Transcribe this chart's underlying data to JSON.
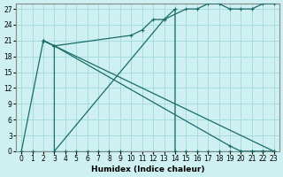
{
  "xlabel": "Humidex (Indice chaleur)",
  "bg_color": "#cef0f0",
  "grid_color": "#a8dcdc",
  "line_color": "#1a6b6b",
  "xlim": [
    -0.5,
    23.5
  ],
  "ylim": [
    0,
    28
  ],
  "xticks": [
    0,
    1,
    2,
    3,
    4,
    5,
    6,
    7,
    8,
    9,
    10,
    11,
    12,
    13,
    14,
    15,
    16,
    17,
    18,
    19,
    20,
    21,
    22,
    23
  ],
  "yticks": [
    0,
    3,
    6,
    9,
    12,
    15,
    18,
    21,
    24,
    27
  ],
  "line1_x": [
    0,
    2,
    3,
    10,
    11,
    12,
    13,
    15,
    16,
    17,
    18,
    19,
    20,
    21,
    22,
    23
  ],
  "line1_y": [
    0,
    21,
    20,
    22,
    23,
    25,
    25,
    27,
    27,
    28,
    28,
    27,
    27,
    27,
    28,
    28
  ],
  "line2_x": [
    2,
    3,
    3,
    13,
    14,
    14
  ],
  "line2_y": [
    21,
    20,
    0,
    25,
    27,
    0
  ],
  "line3_x": [
    2,
    23
  ],
  "line3_y": [
    21,
    0
  ],
  "line3b_x": [
    3,
    19,
    20,
    21,
    22,
    23
  ],
  "line3b_y": [
    20,
    1,
    0,
    0,
    0,
    0
  ],
  "zeros_x": [
    0,
    1,
    4,
    5,
    6,
    7,
    8,
    9,
    14,
    15,
    16,
    17,
    18,
    19,
    20,
    21,
    22,
    23
  ],
  "zeros_y": [
    0,
    0,
    0,
    0,
    0,
    0,
    0,
    0,
    0,
    0,
    0,
    0,
    0,
    0,
    0,
    0,
    0,
    0
  ]
}
